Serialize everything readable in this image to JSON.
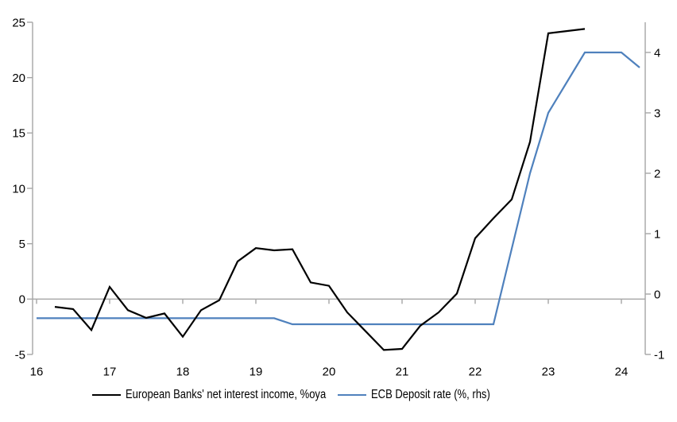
{
  "chart_data": {
    "type": "line",
    "title": "",
    "x_axis": {
      "tick_values": [
        2016,
        2017,
        2018,
        2019,
        2020,
        2021,
        2022,
        2023,
        2024
      ],
      "tick_labels": [
        "16",
        "17",
        "18",
        "19",
        "20",
        "21",
        "22",
        "23",
        "24"
      ]
    },
    "left_axis": {
      "min": -5,
      "max": 25,
      "ticks": [
        25,
        20,
        15,
        10,
        5,
        0,
        -5
      ]
    },
    "right_axis": {
      "min": -1,
      "max": 4.5,
      "ticks": [
        4,
        3,
        2,
        1,
        0,
        -1
      ]
    },
    "grid": "none",
    "zero_baseline": true,
    "legend_position": "bottom",
    "series": [
      {
        "name": "European Banks' net interest income, %oya",
        "axis": "left",
        "color": "#000000",
        "x": [
          2016.25,
          2016.5,
          2016.75,
          2017.0,
          2017.25,
          2017.5,
          2017.75,
          2018.0,
          2018.25,
          2018.5,
          2018.75,
          2019.0,
          2019.25,
          2019.5,
          2019.75,
          2020.0,
          2020.25,
          2020.5,
          2020.75,
          2021.0,
          2021.25,
          2021.5,
          2021.75,
          2022.0,
          2022.25,
          2022.5,
          2022.75,
          2023.0,
          2023.25,
          2023.5
        ],
        "values": [
          -0.7,
          -0.9,
          -2.8,
          1.1,
          -1.0,
          -1.7,
          -1.3,
          -3.4,
          -1.0,
          -0.1,
          3.4,
          4.6,
          4.4,
          4.5,
          1.5,
          1.2,
          -1.2,
          -2.9,
          -4.6,
          -4.5,
          -2.4,
          -1.2,
          0.5,
          5.5,
          7.3,
          9.0,
          14.2,
          24.0,
          24.2,
          24.4
        ]
      },
      {
        "name": "ECB Deposit rate (%, rhs)",
        "axis": "right",
        "color": "#4f81bd",
        "x": [
          2016.0,
          2016.25,
          2016.5,
          2016.75,
          2017.0,
          2017.25,
          2017.5,
          2017.75,
          2018.0,
          2018.25,
          2018.5,
          2018.75,
          2019.0,
          2019.25,
          2019.5,
          2019.75,
          2020.0,
          2020.25,
          2020.5,
          2020.75,
          2021.0,
          2021.25,
          2021.5,
          2021.75,
          2022.0,
          2022.25,
          2022.5,
          2022.75,
          2023.0,
          2023.25,
          2023.5,
          2023.75,
          2024.0,
          2024.25
        ],
        "values": [
          -0.4,
          -0.4,
          -0.4,
          -0.4,
          -0.4,
          -0.4,
          -0.4,
          -0.4,
          -0.4,
          -0.4,
          -0.4,
          -0.4,
          -0.4,
          -0.4,
          -0.5,
          -0.5,
          -0.5,
          -0.5,
          -0.5,
          -0.5,
          -0.5,
          -0.5,
          -0.5,
          -0.5,
          -0.5,
          -0.5,
          0.75,
          2.0,
          3.0,
          3.5,
          4.0,
          4.0,
          4.0,
          3.75
        ]
      }
    ]
  },
  "legend": {
    "items": [
      {
        "label": "European Banks' net interest income, %oya",
        "color": "#000000"
      },
      {
        "label": "ECB Deposit rate (%, rhs)",
        "color": "#4f81bd"
      }
    ]
  },
  "colors": {
    "axis": "#a6a6a6",
    "background": "#ffffff",
    "text": "#000000"
  }
}
